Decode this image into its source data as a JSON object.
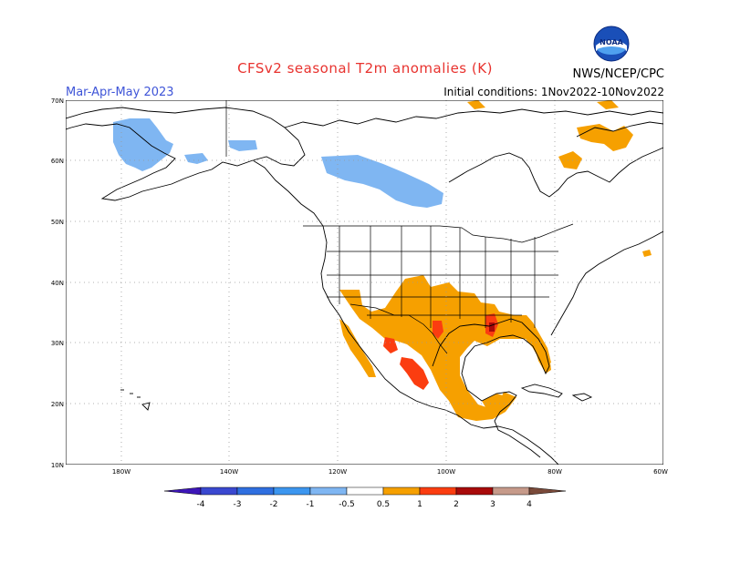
{
  "header": {
    "title": "CFSv2 seasonal T2m anomalies (K)",
    "season": "Mar-Apr-May 2023",
    "initial_conditions": "Initial conditions: 1Nov2022-10Nov2022",
    "agency": "NWS/NCEP/CPC",
    "logo_text": "NOAA"
  },
  "map": {
    "lat_labels": [
      "70N",
      "60N",
      "50N",
      "40N",
      "30N",
      "20N",
      "10N"
    ],
    "lon_labels": [
      "180W",
      "140W",
      "120W",
      "100W",
      "80W",
      "60W"
    ]
  },
  "colorbar": {
    "labels": [
      "-4",
      "-3",
      "-2",
      "-1",
      "-0.5",
      "0.5",
      "1",
      "2",
      "3",
      "4"
    ],
    "colors": [
      "#3d16b8",
      "#3a48d0",
      "#2f6fe0",
      "#3c96ef",
      "#7fb6f2",
      "#ffffff",
      "#f6a000",
      "#fb3d10",
      "#a80a0a",
      "#c69a8a",
      "#7a4a3a"
    ]
  }
}
